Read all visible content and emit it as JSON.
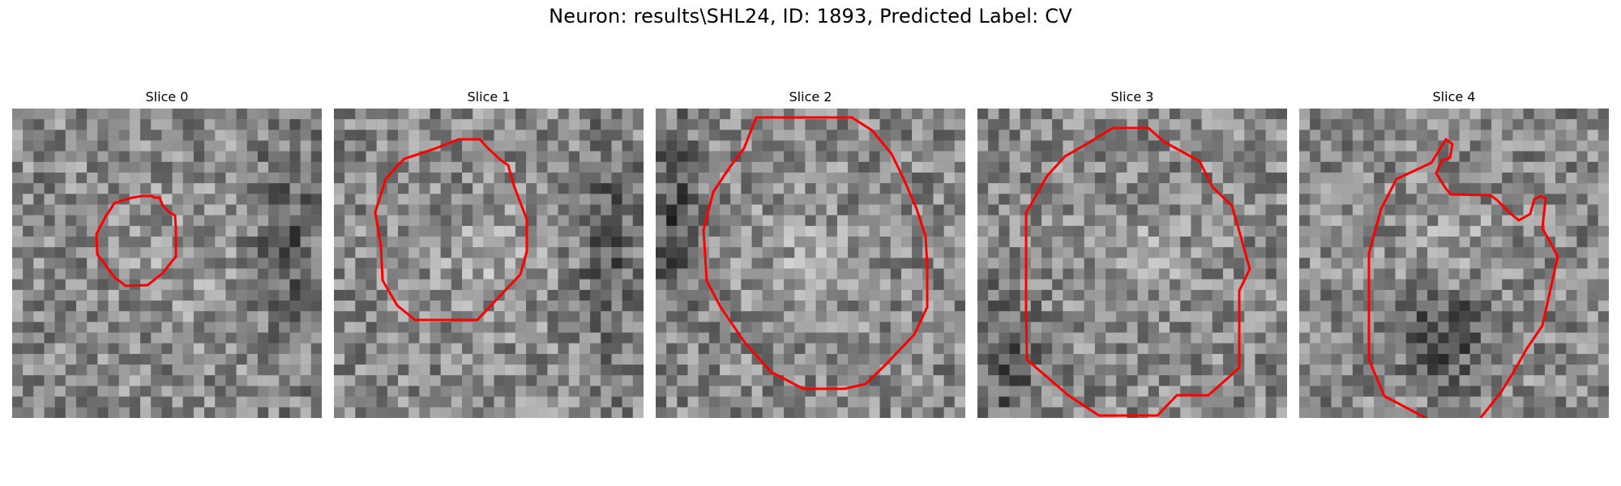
{
  "figure": {
    "title": "Neuron: results\\SHL24, ID: 1893, Predicted Label: CV"
  },
  "panels": [
    {
      "label": "Slice 0",
      "seed": 11,
      "dark_side": "right",
      "mask": "small-octagon"
    },
    {
      "label": "Slice 1",
      "seed": 23,
      "dark_side": "right",
      "mask": "medium-octagon"
    },
    {
      "label": "Slice 2",
      "seed": 37,
      "dark_side": "left",
      "mask": "large-octagon"
    },
    {
      "label": "Slice 3",
      "seed": 53,
      "dark_side": "left-bottom",
      "mask": "large-octagon"
    },
    {
      "label": "Slice 4",
      "seed": 71,
      "dark_side": "center-bottom",
      "mask": "irregular"
    }
  ],
  "colors": {
    "contour": "#ff0000",
    "background": "#ffffff",
    "text": "#000000"
  },
  "image": {
    "colormap": "gray",
    "grid_cells": 29
  }
}
